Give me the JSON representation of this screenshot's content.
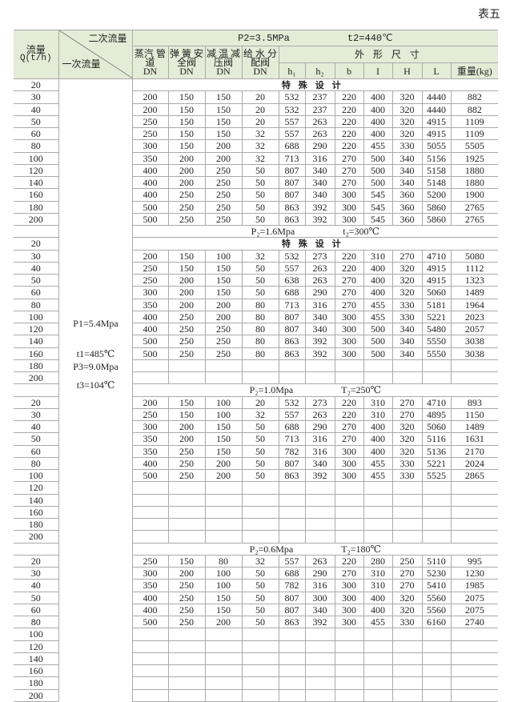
{
  "table_no": "表五",
  "header": {
    "flow_label": "流量",
    "flow_unit": "Q(t/h)",
    "secondary_flow": "二次流量",
    "primary_flow": "一次流量",
    "main_condition": "P2=3.5MPa          t2=440℃",
    "col_steam": "蒸汽 管道",
    "col_safety": "弹 簧 安全阀",
    "col_reducer": "减 温 减压阀",
    "col_water": "给 水 分配阀",
    "dn": "DN",
    "dims": "外 形 尺 寸",
    "dim_cols": [
      "h₁",
      "h₂",
      "b",
      "I",
      "H",
      "L",
      "重量(kg)"
    ]
  },
  "primary_conditions": [
    "P1=5.4Mpa",
    "t1=485℃",
    "P3=9.0Mpa",
    "t3=104℃"
  ],
  "special_note": "特殊设计",
  "sections": [
    {
      "condition": "",
      "rows": [
        {
          "q": "20",
          "special": true,
          "v": []
        },
        {
          "q": "30",
          "v": [
            200,
            150,
            150,
            20,
            532,
            237,
            220,
            400,
            320,
            4440,
            882
          ]
        },
        {
          "q": "40",
          "v": [
            200,
            150,
            150,
            20,
            532,
            237,
            220,
            400,
            320,
            4440,
            882
          ]
        },
        {
          "q": "50",
          "v": [
            250,
            150,
            150,
            20,
            557,
            263,
            220,
            400,
            320,
            4915,
            1109
          ]
        },
        {
          "q": "60",
          "v": [
            250,
            150,
            150,
            32,
            557,
            263,
            220,
            400,
            320,
            4915,
            1109
          ]
        },
        {
          "q": "80",
          "v": [
            300,
            150,
            200,
            32,
            688,
            290,
            220,
            455,
            330,
            5055,
            5505
          ]
        },
        {
          "q": "100",
          "v": [
            350,
            200,
            200,
            32,
            713,
            316,
            270,
            500,
            340,
            5156,
            1925
          ]
        },
        {
          "q": "120",
          "v": [
            400,
            200,
            250,
            50,
            807,
            340,
            270,
            500,
            340,
            5158,
            1880
          ]
        },
        {
          "q": "140",
          "v": [
            400,
            200,
            250,
            50,
            807,
            340,
            270,
            500,
            340,
            5148,
            1880
          ]
        },
        {
          "q": "160",
          "v": [
            400,
            250,
            250,
            50,
            807,
            340,
            300,
            545,
            360,
            5200,
            1900
          ]
        },
        {
          "q": "180",
          "v": [
            500,
            250,
            250,
            50,
            863,
            392,
            300,
            545,
            360,
            5860,
            2765
          ]
        },
        {
          "q": "200",
          "v": [
            500,
            250,
            250,
            50,
            863,
            392,
            300,
            545,
            360,
            5860,
            2765
          ]
        }
      ]
    },
    {
      "p2": "P₂=1.6Mpa",
      "t2": "t₂=300℃",
      "rows": [
        {
          "q": "20",
          "special": true,
          "v": []
        },
        {
          "q": "30",
          "v": [
            200,
            150,
            100,
            32,
            532,
            273,
            220,
            310,
            270,
            4710,
            5080
          ]
        },
        {
          "q": "40",
          "v": [
            250,
            150,
            150,
            50,
            557,
            263,
            220,
            400,
            320,
            4915,
            1112
          ]
        },
        {
          "q": "50",
          "v": [
            250,
            200,
            150,
            50,
            638,
            263,
            270,
            400,
            320,
            4915,
            1323
          ]
        },
        {
          "q": "60",
          "v": [
            300,
            200,
            150,
            50,
            688,
            290,
            270,
            400,
            320,
            5060,
            1489
          ]
        },
        {
          "q": "80",
          "v": [
            350,
            200,
            200,
            80,
            713,
            316,
            270,
            455,
            330,
            5181,
            1964
          ]
        },
        {
          "q": "100",
          "v": [
            400,
            250,
            200,
            80,
            807,
            340,
            300,
            455,
            330,
            5221,
            2023
          ]
        },
        {
          "q": "120",
          "v": [
            400,
            250,
            250,
            80,
            807,
            340,
            300,
            500,
            340,
            5480,
            2057
          ]
        },
        {
          "q": "140",
          "v": [
            500,
            250,
            250,
            80,
            863,
            392,
            300,
            500,
            340,
            5550,
            3038
          ]
        },
        {
          "q": "160",
          "v": [
            500,
            250,
            250,
            80,
            863,
            392,
            300,
            500,
            340,
            5550,
            3038
          ]
        },
        {
          "q": "180",
          "v": []
        },
        {
          "q": "200",
          "v": []
        }
      ]
    },
    {
      "p2": "P₂=1.0Mpa",
      "t2": "T₂=250℃",
      "rows": [
        {
          "q": "20",
          "v": [
            200,
            150,
            100,
            20,
            532,
            273,
            220,
            310,
            270,
            4710,
            893
          ]
        },
        {
          "q": "30",
          "v": [
            250,
            150,
            100,
            32,
            557,
            263,
            220,
            310,
            270,
            4895,
            1150
          ]
        },
        {
          "q": "40",
          "v": [
            300,
            200,
            150,
            50,
            688,
            290,
            270,
            400,
            320,
            5060,
            1489
          ]
        },
        {
          "q": "50",
          "v": [
            350,
            200,
            150,
            50,
            713,
            316,
            270,
            400,
            320,
            5116,
            1631
          ]
        },
        {
          "q": "60",
          "v": [
            350,
            250,
            150,
            50,
            782,
            316,
            300,
            400,
            320,
            5136,
            2170
          ]
        },
        {
          "q": "80",
          "v": [
            400,
            250,
            200,
            50,
            807,
            340,
            300,
            455,
            330,
            5221,
            2024
          ]
        },
        {
          "q": "100",
          "v": [
            500,
            250,
            200,
            50,
            863,
            392,
            300,
            455,
            330,
            5525,
            2865
          ]
        },
        {
          "q": "120",
          "v": []
        },
        {
          "q": "140",
          "v": []
        },
        {
          "q": "160",
          "v": []
        },
        {
          "q": "180",
          "v": []
        },
        {
          "q": "200",
          "v": []
        }
      ]
    },
    {
      "p2": "P₂=0.6Mpa",
      "t2": "T₂=180℃",
      "rows": [
        {
          "q": "20",
          "v": [
            250,
            150,
            80,
            32,
            557,
            263,
            220,
            280,
            250,
            5110,
            995
          ]
        },
        {
          "q": "30",
          "v": [
            300,
            200,
            100,
            50,
            688,
            290,
            270,
            310,
            270,
            5230,
            1230
          ]
        },
        {
          "q": "40",
          "v": [
            350,
            250,
            100,
            50,
            782,
            316,
            300,
            310,
            270,
            5410,
            1985
          ]
        },
        {
          "q": "50",
          "v": [
            400,
            250,
            150,
            50,
            807,
            300,
            300,
            400,
            320,
            5560,
            2075
          ]
        },
        {
          "q": "60",
          "v": [
            400,
            250,
            150,
            50,
            807,
            340,
            300,
            400,
            320,
            5560,
            2075
          ]
        },
        {
          "q": "80",
          "v": [
            500,
            250,
            200,
            50,
            863,
            392,
            300,
            455,
            330,
            6160,
            2740
          ]
        },
        {
          "q": "100",
          "v": []
        },
        {
          "q": "120",
          "v": []
        },
        {
          "q": "140",
          "v": []
        },
        {
          "q": "160",
          "v": []
        },
        {
          "q": "180",
          "v": []
        },
        {
          "q": "200",
          "v": []
        }
      ]
    }
  ],
  "colors": {
    "header_bg": "#e3ecd6",
    "grid": "#aaaaaa"
  }
}
